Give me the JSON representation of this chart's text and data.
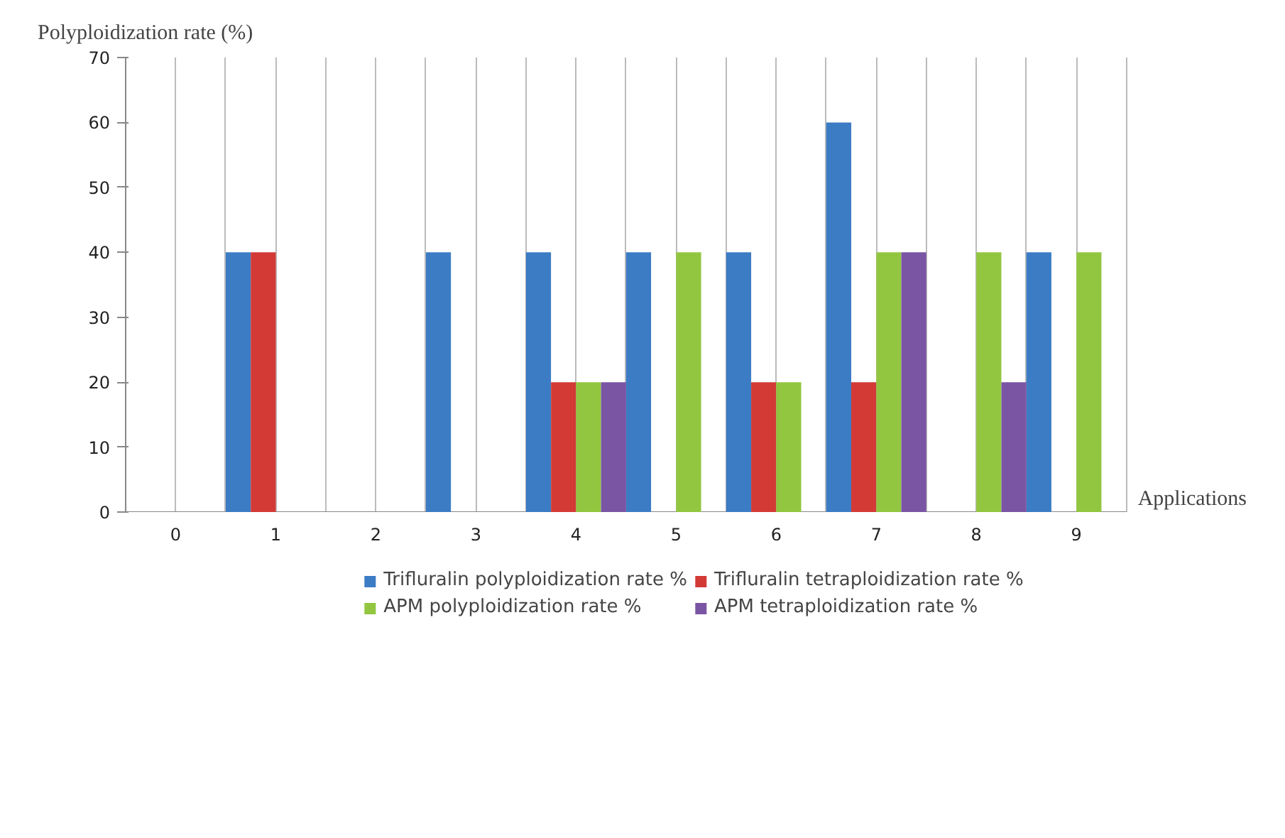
{
  "chart_data": {
    "type": "bar",
    "ylabel": "Polyploidization rate (%)",
    "xlabel": "Applications",
    "categories": [
      "0",
      "1",
      "2",
      "3",
      "4",
      "5",
      "6",
      "7",
      "8",
      "9"
    ],
    "series": [
      {
        "name": "Trifluralin polyploidization rate %",
        "color": "#3c7cc4",
        "values": [
          0,
          40,
          0,
          40,
          40,
          40,
          40,
          60,
          0,
          40
        ]
      },
      {
        "name": "Trifluralin tetraploidization rate %",
        "color": "#d33a36",
        "values": [
          0,
          40,
          0,
          0,
          20,
          0,
          20,
          20,
          0,
          0
        ]
      },
      {
        "name": "APM polyploidization rate %",
        "color": "#92c640",
        "values": [
          0,
          0,
          0,
          0,
          20,
          40,
          20,
          40,
          40,
          40
        ]
      },
      {
        "name": "APM tetraploidization rate %",
        "color": "#7a55a4",
        "values": [
          0,
          0,
          0,
          0,
          20,
          0,
          0,
          40,
          20,
          0
        ]
      }
    ],
    "ylim": [
      0,
      70
    ],
    "yticks": [
      0,
      10,
      20,
      30,
      40,
      50,
      60,
      70
    ],
    "grid": "x",
    "legend": "bottom"
  }
}
